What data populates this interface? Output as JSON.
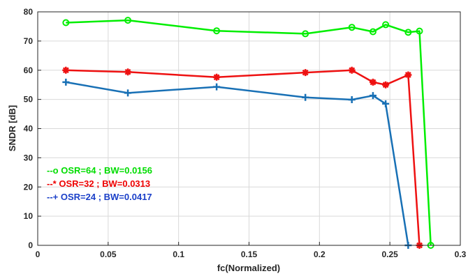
{
  "chart_data": {
    "type": "line",
    "title": "",
    "xlabel": "fc(Normalized)",
    "ylabel": "SNDR [dB]",
    "xlim": [
      0,
      0.3
    ],
    "ylim": [
      0,
      80
    ],
    "xticks": [
      0,
      0.05,
      0.1,
      0.15,
      0.2,
      0.25,
      0.3
    ],
    "xtick_labels": [
      "0",
      "0.05",
      "0.1",
      "0.15",
      "0.2",
      "0.25",
      "0.3"
    ],
    "yticks": [
      0,
      10,
      20,
      30,
      40,
      50,
      60,
      70,
      80
    ],
    "ytick_labels": [
      "0",
      "10",
      "20",
      "30",
      "40",
      "50",
      "60",
      "70",
      "80"
    ],
    "grid": true,
    "legend_position": "lower-left",
    "series": [
      {
        "name": "--o OSR=64 ; BW=0.0156",
        "color": "#00ee00",
        "marker": "circle",
        "x": [
          0.02,
          0.064,
          0.127,
          0.19,
          0.223,
          0.238,
          0.247,
          0.263,
          0.271,
          0.279
        ],
        "y": [
          76.3,
          77.1,
          73.5,
          72.5,
          74.7,
          73.2,
          75.6,
          73.0,
          73.4,
          0
        ]
      },
      {
        "name": "--* OSR=32 ; BW=0.0313",
        "color": "#ee1111",
        "marker": "star",
        "x": [
          0.02,
          0.064,
          0.127,
          0.19,
          0.223,
          0.238,
          0.247,
          0.263,
          0.271
        ],
        "y": [
          60.0,
          59.4,
          57.6,
          59.2,
          60.0,
          55.9,
          55.0,
          58.4,
          0
        ]
      },
      {
        "name": "--+ OSR=24 ; BW=0.0417",
        "color": "#1870b5",
        "marker": "plus",
        "x": [
          0.02,
          0.064,
          0.127,
          0.19,
          0.223,
          0.238,
          0.247,
          0.263
        ],
        "y": [
          55.9,
          52.2,
          54.3,
          50.7,
          49.9,
          51.3,
          48.5,
          0
        ]
      }
    ]
  },
  "legend_colors": [
    "#00dd00",
    "#ee0000",
    "#1a3fc8"
  ]
}
